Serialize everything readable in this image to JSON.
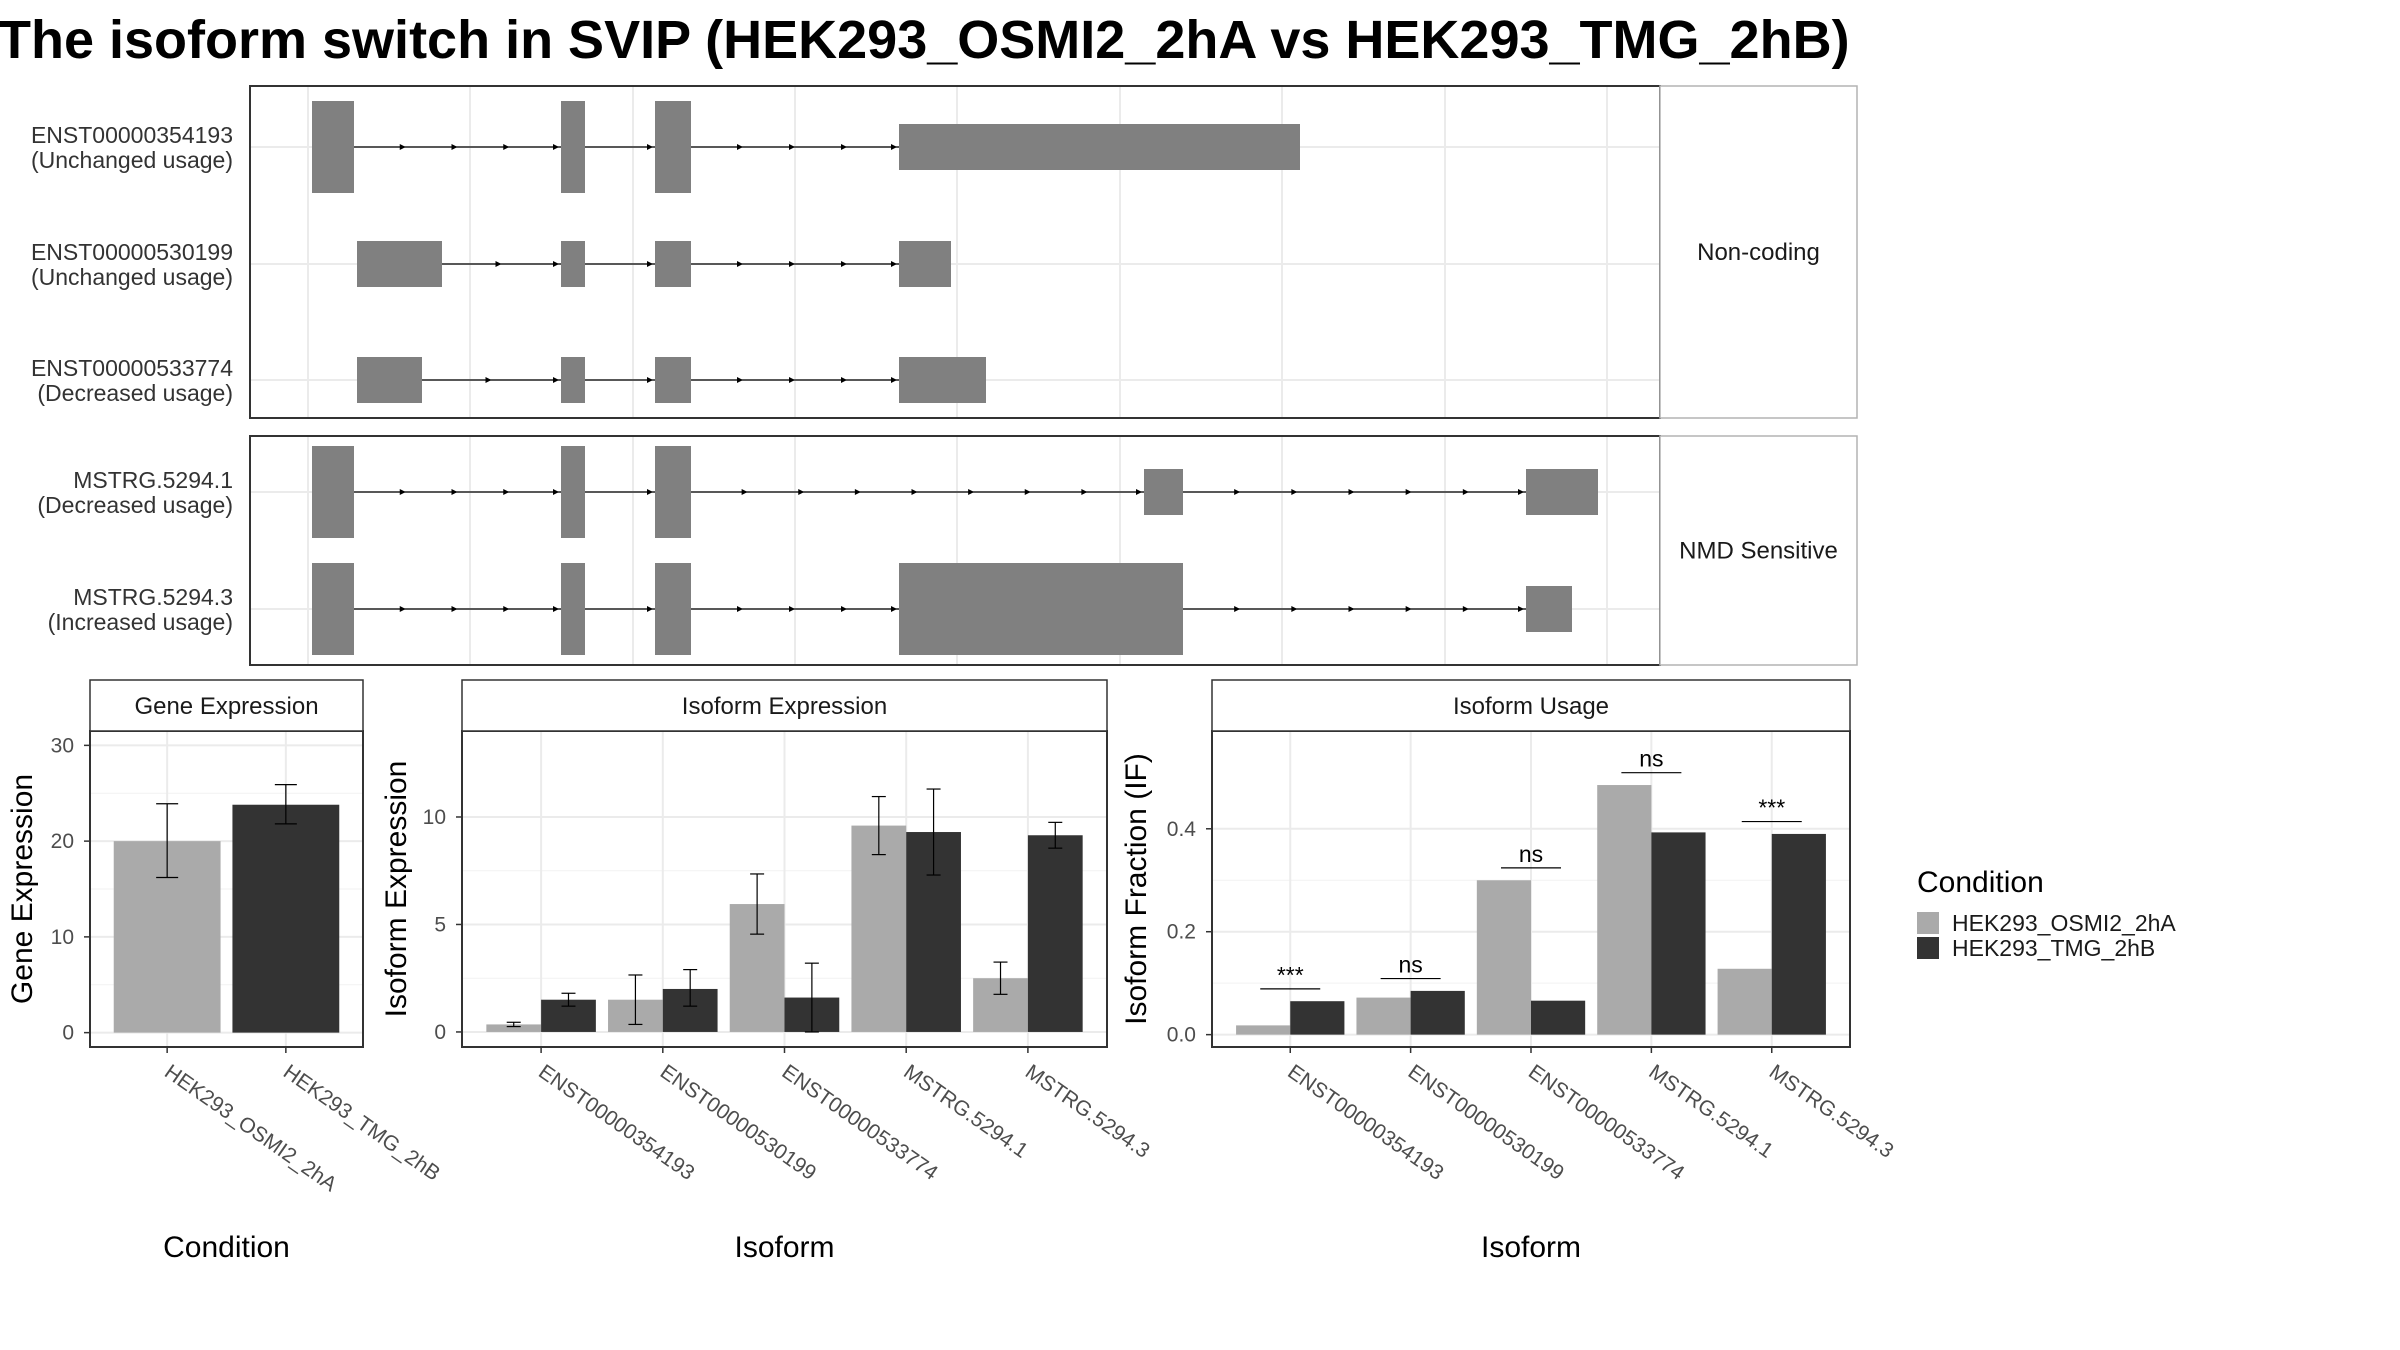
{
  "title": "The isoform switch in SVIP (HEK293_OSMI2_2hA vs HEK293_TMG_2hB)",
  "transcript_groups": [
    {
      "label": "Non-coding",
      "transcripts": [
        {
          "id": "ENST00000354193",
          "usage": "(Unchanged usage)"
        },
        {
          "id": "ENST00000530199",
          "usage": "(Unchanged usage)"
        },
        {
          "id": "ENST00000533774",
          "usage": "(Decreased usage)"
        }
      ]
    },
    {
      "label": "NMD Sensitive",
      "transcripts": [
        {
          "id": "MSTRG.5294.1",
          "usage": "(Decreased usage)"
        },
        {
          "id": "MSTRG.5294.3",
          "usage": "(Increased usage)"
        }
      ]
    }
  ],
  "colors": {
    "HEK293_OSMI2_2hA": "#aaaaaa",
    "HEK293_TMG_2hB": "#333333",
    "exon": "#808080",
    "grid": "#ebebeb",
    "strip_fill": "#ffffff"
  },
  "legend": {
    "title": "Condition",
    "items": [
      "HEK293_OSMI2_2hA",
      "HEK293_TMG_2hB"
    ]
  },
  "chart_data": [
    {
      "type": "bar",
      "title": "Gene Expression",
      "xlabel": "Condition",
      "ylabel": "Gene Expression",
      "categories": [
        "HEK293_OSMI2_2hA",
        "HEK293_TMG_2hB"
      ],
      "values": [
        20.0,
        23.8
      ],
      "error": [
        [
          16.2,
          23.9
        ],
        [
          21.8,
          25.9
        ]
      ],
      "yticks": [
        0,
        10,
        20,
        30
      ],
      "ylim": [
        -1.5,
        31.5
      ],
      "grid": true
    },
    {
      "type": "bar",
      "title": "Isoform Expression",
      "xlabel": "Isoform",
      "ylabel": "Isoform Expression",
      "categories": [
        "ENST00000354193",
        "ENST00000530199",
        "ENST00000533774",
        "MSTRG.5294.1",
        "MSTRG.5294.3"
      ],
      "series": [
        {
          "name": "HEK293_OSMI2_2hA",
          "values": [
            0.35,
            1.5,
            5.95,
            9.6,
            2.5
          ],
          "error": [
            [
              0.25,
              0.45
            ],
            [
              0.35,
              2.65
            ],
            [
              4.55,
              7.35
            ],
            [
              8.25,
              10.95
            ],
            [
              1.75,
              3.25
            ]
          ]
        },
        {
          "name": "HEK293_TMG_2hB",
          "values": [
            1.5,
            2.0,
            1.6,
            9.3,
            9.15
          ],
          "error": [
            [
              1.2,
              1.8
            ],
            [
              1.2,
              2.9
            ],
            [
              0.0,
              3.2
            ],
            [
              7.3,
              11.3
            ],
            [
              8.55,
              9.75
            ]
          ]
        }
      ],
      "yticks": [
        0,
        5,
        10
      ],
      "ylim": [
        -0.7,
        14.0
      ],
      "grid": true
    },
    {
      "type": "bar",
      "title": "Isoform Usage",
      "xlabel": "Isoform",
      "ylabel": "Isoform Fraction (IF)",
      "categories": [
        "ENST00000354193",
        "ENST00000530199",
        "ENST00000533774",
        "MSTRG.5294.1",
        "MSTRG.5294.3"
      ],
      "series": [
        {
          "name": "HEK293_OSMI2_2hA",
          "values": [
            0.018,
            0.072,
            0.3,
            0.485,
            0.128
          ]
        },
        {
          "name": "HEK293_TMG_2hB",
          "values": [
            0.065,
            0.085,
            0.066,
            0.393,
            0.39
          ]
        }
      ],
      "significance": [
        "***",
        "ns",
        "ns",
        "ns",
        "***"
      ],
      "yticks": [
        0.0,
        0.2,
        0.4
      ],
      "ylim": [
        -0.024,
        0.59
      ],
      "grid": true
    }
  ]
}
